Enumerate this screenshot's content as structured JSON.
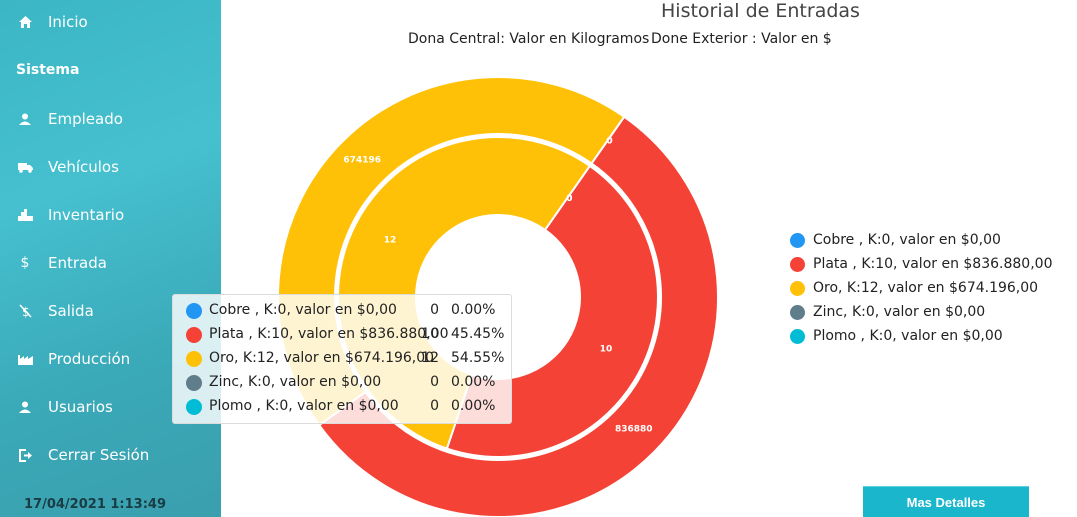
{
  "sidebar": {
    "items": [
      {
        "label": "Inicio",
        "icon": "home-icon"
      },
      {
        "label": "Empleado",
        "icon": "user-icon"
      },
      {
        "label": "Vehículos",
        "icon": "truck-icon"
      },
      {
        "label": "Inventario",
        "icon": "inventory-icon"
      },
      {
        "label": "Entrada",
        "icon": "dollar-icon"
      },
      {
        "label": "Salida",
        "icon": "no-dollar-icon"
      },
      {
        "label": "Producción",
        "icon": "factory-icon"
      },
      {
        "label": "Usuarios",
        "icon": "users-icon"
      },
      {
        "label": "Cerrar Sesión",
        "icon": "logout-icon"
      }
    ],
    "section_title": "Sistema",
    "timestamp": "17/04/2021 1:13:49"
  },
  "header": {
    "title": "Historial de Entradas",
    "subtitle_inner": "Dona Central: Valor en Kilogramos",
    "subtitle_outer": "Done Exterior : Valor en $"
  },
  "legend": [
    {
      "label": "Cobre , K:0, valor en $0,00",
      "color": "#2196f3"
    },
    {
      "label": "Plata , K:10, valor en $836.880,00",
      "color": "#f44336"
    },
    {
      "label": "Oro, K:12, valor en $674.196,00",
      "color": "#ffc107"
    },
    {
      "label": "Zinc, K:0, valor en $0,00",
      "color": "#607d8b"
    },
    {
      "label": "Plomo , K:0, valor en $0,00",
      "color": "#00bcd4"
    }
  ],
  "tooltip": [
    {
      "label": "Cobre , K:0, valor en $0,00",
      "value": "0",
      "pct": "0.00%",
      "color": "#2196f3"
    },
    {
      "label": "Plata , K:10, valor en $836.880,00",
      "value": "10",
      "pct": "45.45%",
      "color": "#f44336"
    },
    {
      "label": "Oro, K:12, valor en $674.196,00",
      "value": "12",
      "pct": "54.55%",
      "color": "#ffc107"
    },
    {
      "label": "Zinc, K:0, valor en $0,00",
      "value": "0",
      "pct": "0.00%",
      "color": "#607d8b"
    },
    {
      "label": "Plomo , K:0, valor en $0,00",
      "value": "0",
      "pct": "0.00%",
      "color": "#00bcd4"
    }
  ],
  "button": {
    "label": "Mas Detalles"
  },
  "chart_data": {
    "type": "pie",
    "title": "Historial de Entradas",
    "categories": [
      "Cobre",
      "Plata",
      "Oro",
      "Zinc",
      "Plomo"
    ],
    "colors": [
      "#2196f3",
      "#f44336",
      "#ffc107",
      "#607d8b",
      "#00bcd4"
    ],
    "series": [
      {
        "name": "Dona Central: Valor en Kilogramos",
        "values": [
          0,
          10,
          12,
          0,
          0
        ],
        "labels": [
          "0",
          "10",
          "12",
          "0",
          "0"
        ]
      },
      {
        "name": "Done Exterior : Valor en $",
        "values": [
          0,
          836880,
          674196,
          0,
          0
        ],
        "labels": [
          "0",
          "836880",
          "674196",
          "0",
          "0"
        ]
      }
    ],
    "legend_position": "right"
  }
}
